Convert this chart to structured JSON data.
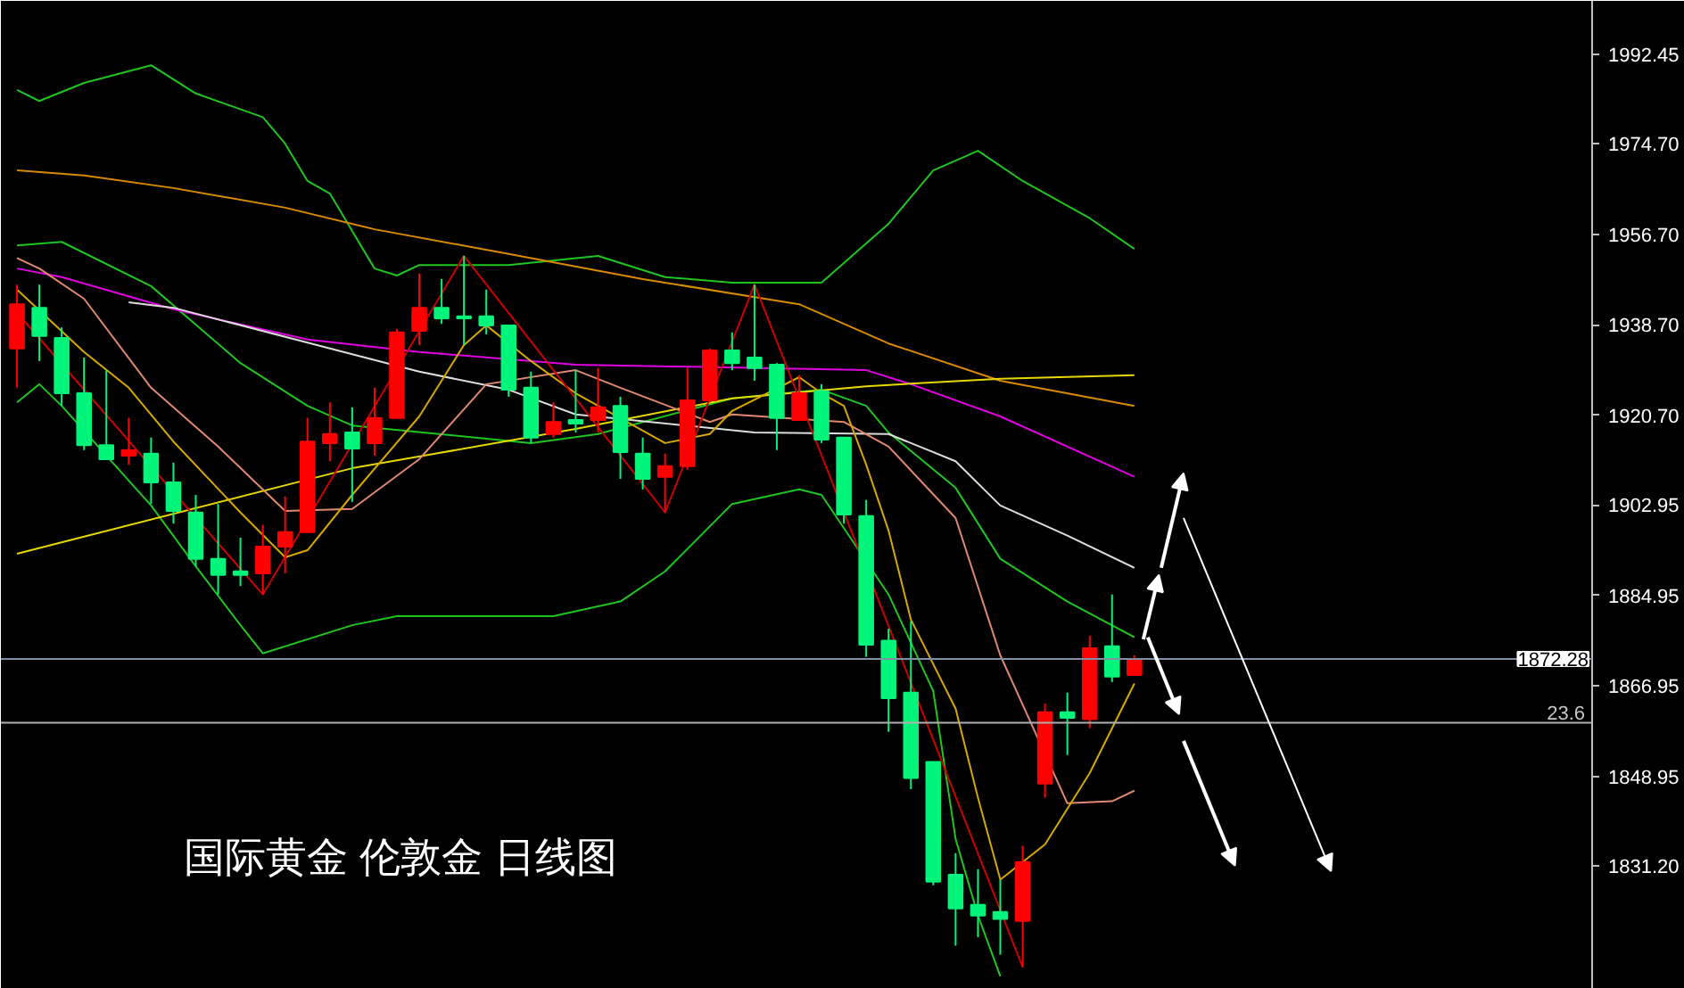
{
  "chart_data": {
    "type": "candlestick",
    "title": "国际黄金 伦敦金 日线图",
    "categories": [
      null,
      null,
      null,
      null,
      null,
      null,
      null,
      null,
      null,
      null,
      null,
      null,
      null,
      null,
      null,
      null,
      null,
      null,
      null,
      null,
      null,
      null,
      null,
      null,
      null,
      null,
      null,
      null,
      null,
      null,
      null,
      null,
      null,
      null,
      null,
      null,
      null,
      null,
      null,
      null,
      null,
      null,
      null,
      null,
      null,
      null,
      null,
      null,
      null,
      null,
      null
    ],
    "ohlc": [
      [
        1934.0,
        1946.7,
        1926.2,
        1942.8
      ],
      [
        1942.1,
        1946.7,
        1931.5,
        1936.5
      ],
      [
        1936.1,
        1938.2,
        1922.6,
        1925.1
      ],
      [
        1925.1,
        1932.2,
        1913.8,
        1914.8
      ],
      [
        1914.8,
        1929.7,
        1912.0,
        1912.0
      ],
      [
        1912.7,
        1920.2,
        1910.9,
        1913.8
      ],
      [
        1913.1,
        1916.3,
        1903.1,
        1907.4
      ],
      [
        1907.4,
        1911.3,
        1899.2,
        1901.7
      ],
      [
        1901.4,
        1904.9,
        1890.7,
        1892.2
      ],
      [
        1892.2,
        1903.1,
        1885.1,
        1889.0
      ],
      [
        1889.7,
        1896.4,
        1886.8,
        1889.0
      ],
      [
        1889.3,
        1898.9,
        1885.1,
        1894.6
      ],
      [
        1894.6,
        1904.6,
        1889.3,
        1897.5
      ],
      [
        1897.5,
        1920.2,
        1897.5,
        1915.5
      ],
      [
        1915.2,
        1923.3,
        1911.6,
        1917.0
      ],
      [
        1917.3,
        1922.3,
        1903.5,
        1914.1
      ],
      [
        1915.2,
        1926.2,
        1912.7,
        1920.2
      ],
      [
        1920.2,
        1937.9,
        1920.2,
        1937.2
      ],
      [
        1937.5,
        1948.9,
        1934.7,
        1942.1
      ],
      [
        1942.1,
        1947.8,
        1938.9,
        1940.0
      ],
      [
        1940.4,
        1952.4,
        1934.7,
        1940.0
      ],
      [
        1940.4,
        1945.7,
        1936.8,
        1938.6
      ],
      [
        1938.6,
        1938.6,
        1924.4,
        1925.8
      ],
      [
        1926.2,
        1929.4,
        1915.2,
        1916.3
      ],
      [
        1917.0,
        1923.3,
        1916.3,
        1919.4
      ],
      [
        1919.8,
        1929.7,
        1917.3,
        1919.1
      ],
      [
        1919.8,
        1930.1,
        1917.3,
        1922.3
      ],
      [
        1922.6,
        1924.4,
        1908.1,
        1913.4
      ],
      [
        1913.1,
        1916.3,
        1906.0,
        1908.1
      ],
      [
        1908.5,
        1913.1,
        1901.4,
        1910.6
      ],
      [
        1910.6,
        1930.1,
        1909.9,
        1923.7
      ],
      [
        1923.7,
        1934.0,
        1923.7,
        1933.6
      ],
      [
        1933.6,
        1937.2,
        1929.7,
        1931.1
      ],
      [
        1932.2,
        1946.7,
        1927.6,
        1930.1
      ],
      [
        1930.8,
        1931.1,
        1913.8,
        1920.2
      ],
      [
        1919.8,
        1928.7,
        1919.8,
        1925.1
      ],
      [
        1925.5,
        1926.9,
        1915.2,
        1915.9
      ],
      [
        1916.3,
        1916.3,
        1899.2,
        1901.0
      ],
      [
        1900.7,
        1903.9,
        1872.7,
        1875.1
      ],
      [
        1875.9,
        1878.3,
        1857.8,
        1864.5
      ],
      [
        1865.6,
        1879.8,
        1846.4,
        1848.6
      ],
      [
        1851.8,
        1851.8,
        1827.3,
        1828.0
      ],
      [
        1829.4,
        1833.7,
        1815.3,
        1822.7
      ],
      [
        1823.4,
        1830.5,
        1817.0,
        1821.3
      ],
      [
        1822.0,
        1828.4,
        1813.5,
        1820.6
      ],
      [
        1820.2,
        1835.1,
        1811.0,
        1831.9
      ],
      [
        1847.5,
        1863.4,
        1844.7,
        1861.7
      ],
      [
        1861.7,
        1865.6,
        1853.2,
        1860.6
      ],
      [
        1860.3,
        1876.9,
        1858.5,
        1874.4
      ],
      [
        1874.8,
        1885.1,
        1867.7,
        1868.8
      ],
      [
        1869.1,
        1873.0,
        1869.1,
        1872.28
      ]
    ],
    "colors": [
      "#ff0000",
      "#00f57a",
      "#00f57a",
      "#00f57a",
      "#00f57a",
      "#ff0000",
      "#00f57a",
      "#00f57a",
      "#00f57a",
      "#00f57a",
      "#00f57a",
      "#ff0000",
      "#ff0000",
      "#ff0000",
      "#ff0000",
      "#00f57a",
      "#ff0000",
      "#ff0000",
      "#ff0000",
      "#00f57a",
      "#00f57a",
      "#00f57a",
      "#00f57a",
      "#00f57a",
      "#ff0000",
      "#00f57a",
      "#ff0000",
      "#00f57a",
      "#00f57a",
      "#ff0000",
      "#ff0000",
      "#ff0000",
      "#00f57a",
      "#00f57a",
      "#00f57a",
      "#ff0000",
      "#00f57a",
      "#00f57a",
      "#00f57a",
      "#00f57a",
      "#00f57a",
      "#00f57a",
      "#00f57a",
      "#00f57a",
      "#00f57a",
      "#ff0000",
      "#ff0000",
      "#00f57a",
      "#ff0000",
      "#00f57a",
      "#ff0000"
    ],
    "series": [
      {
        "type": "line",
        "color": "#1fc41f",
        "values": [
          1985.4,
          1983.2,
          null,
          1986.8,
          null,
          null,
          1990.3,
          null,
          1984.7,
          null,
          null,
          1980.0,
          1974.7,
          1967.3,
          1964.8,
          null,
          1949.9,
          1948.5,
          1950.6,
          null,
          null,
          null,
          1950.6,
          null,
          null,
          null,
          1952.4,
          null,
          null,
          1948.2,
          null,
          null,
          1947.1,
          null,
          null,
          null,
          1947.1,
          null,
          null,
          1958.8,
          null,
          1969.4,
          null,
          1973.3,
          null,
          1967.3,
          null,
          null,
          1959.9,
          null,
          1953.8
        ]
      },
      {
        "type": "line",
        "color": "#1fc41f",
        "values": [
          1954.5,
          null,
          1955.2,
          null,
          null,
          null,
          1946.4,
          null,
          null,
          null,
          1931.1,
          null,
          null,
          1922.6,
          null,
          1918.7,
          null,
          null,
          null,
          null,
          null,
          null,
          null,
          1915.2,
          null,
          null,
          1917.0,
          null,
          null,
          null,
          null,
          null,
          1924.1,
          null,
          null,
          null,
          1925.8,
          null,
          1922.6,
          1917.3,
          null,
          null,
          1906.3,
          null,
          1892.2,
          null,
          null,
          1883.7,
          null,
          null,
          1876.6
        ]
      },
      {
        "type": "line",
        "color": "#1fc41f",
        "values": [
          1923.3,
          1926.9,
          1922.6,
          null,
          null,
          null,
          1902.8,
          null,
          1890.7,
          null,
          1879.0,
          1873.4,
          null,
          null,
          null,
          1879.0,
          null,
          1880.8,
          null,
          null,
          null,
          null,
          null,
          null,
          1880.8,
          null,
          null,
          1883.7,
          null,
          1889.7,
          null,
          null,
          1903.1,
          null,
          null,
          1906.0,
          1904.9,
          null,
          null,
          1885.1,
          null,
          1865.9,
          1836.5,
          1821.3,
          1809.2,
          null,
          null,
          null,
          null,
          null,
          null
        ]
      },
      {
        "type": "line",
        "color": "#d98a00",
        "values": [
          1969.4,
          null,
          null,
          1968.4,
          null,
          null,
          null,
          1965.9,
          null,
          null,
          null,
          null,
          1962.0,
          null,
          null,
          null,
          1957.7,
          null,
          null,
          null,
          null,
          null,
          1952.8,
          null,
          null,
          null,
          null,
          null,
          1947.8,
          null,
          null,
          null,
          null,
          null,
          null,
          1942.8,
          null,
          null,
          null,
          1935.0,
          null,
          null,
          null,
          null,
          1927.6,
          null,
          null,
          null,
          null,
          null,
          1922.6
        ]
      },
      {
        "type": "line",
        "color": "#e000e0",
        "values": [
          1949.9,
          null,
          1948.2,
          null,
          null,
          null,
          null,
          1941.8,
          null,
          null,
          null,
          null,
          null,
          1935.8,
          null,
          null,
          null,
          null,
          1933.3,
          null,
          null,
          null,
          null,
          null,
          null,
          1930.8,
          null,
          null,
          null,
          null,
          null,
          null,
          null,
          null,
          null,
          null,
          null,
          null,
          1929.7,
          null,
          1926.9,
          null,
          null,
          null,
          1920.5,
          null,
          null,
          null,
          null,
          null,
          1908.5
        ]
      },
      {
        "type": "line",
        "color": "#dddddd",
        "values": [
          null,
          null,
          null,
          null,
          null,
          1943.2,
          null,
          1942.1,
          null,
          null,
          null,
          null,
          null,
          null,
          1934.0,
          null,
          null,
          null,
          1929.4,
          null,
          null,
          null,
          1925.8,
          null,
          null,
          1920.9,
          null,
          null,
          null,
          null,
          null,
          null,
          null,
          1917.3,
          null,
          null,
          null,
          null,
          null,
          1917.0,
          null,
          null,
          1911.6,
          null,
          1902.8,
          null,
          null,
          1896.8,
          null,
          null,
          1890.4
        ]
      },
      {
        "type": "line",
        "color": "#e6d800",
        "values": [
          1893.2,
          null,
          null,
          null,
          null,
          null,
          null,
          null,
          null,
          null,
          null,
          null,
          null,
          null,
          null,
          1910.2,
          null,
          null,
          null,
          null,
          null,
          null,
          null,
          null,
          null,
          1918.0,
          null,
          null,
          null,
          null,
          null,
          null,
          1924.1,
          null,
          null,
          null,
          null,
          null,
          1926.5,
          null,
          null,
          null,
          null,
          null,
          1928.0,
          null,
          null,
          null,
          null,
          null,
          1928.7
        ]
      },
      {
        "type": "line",
        "color": "#e08870",
        "values": [
          1952.0,
          1949.9,
          null,
          1943.9,
          null,
          null,
          1926.2,
          null,
          null,
          1914.5,
          null,
          null,
          1901.7,
          null,
          null,
          1902.1,
          null,
          null,
          1912.0,
          null,
          null,
          1926.9,
          null,
          null,
          null,
          1929.7,
          null,
          1926.2,
          null,
          null,
          null,
          1919.4,
          1920.9,
          null,
          null,
          null,
          null,
          1919.4,
          null,
          1914.5,
          null,
          null,
          1900.3,
          null,
          1873.0,
          null,
          null,
          1843.6,
          null,
          1844.0,
          1846.1
        ]
      },
      {
        "type": "line",
        "color": "#d8a800",
        "values": [
          1945.7,
          null,
          null,
          1933.3,
          null,
          1926.2,
          null,
          1915.5,
          null,
          null,
          1901.4,
          null,
          1892.5,
          1893.9,
          null,
          1904.9,
          null,
          null,
          1920.5,
          null,
          1934.7,
          1938.6,
          null,
          1931.5,
          null,
          1925.1,
          null,
          null,
          null,
          1915.2,
          null,
          1917.0,
          1921.6,
          null,
          null,
          1928.3,
          1925.1,
          1922.6,
          1910.9,
          1897.8,
          1880.1,
          null,
          1862.4,
          1844.7,
          1828.4,
          null,
          1835.4,
          null,
          1849.6,
          null,
          1867.4
        ]
      },
      {
        "type": "line",
        "color": "#cc0000",
        "values": [
          1941.1,
          null,
          null,
          null,
          null,
          null,
          null,
          null,
          null,
          null,
          null,
          1885.1,
          null,
          null,
          null,
          null,
          null,
          null,
          null,
          null,
          1952.4,
          null,
          null,
          null,
          null,
          null,
          null,
          null,
          null,
          1901.4,
          null,
          null,
          null,
          1946.7,
          null,
          null,
          null,
          null,
          null,
          null,
          null,
          null,
          null,
          null,
          null,
          1811.0,
          null,
          null,
          null,
          null,
          null
        ]
      }
    ],
    "ylim": [
      1806.7,
      2003.1
    ],
    "yticks": [
      1992.45,
      {
        "value": 1974.7,
        "label": "1974.70"
      },
      {
        "value": 1956.7,
        "label": "1956.70"
      },
      {
        "value": 1938.7,
        "label": "1938.70"
      },
      {
        "value": 1920.7,
        "label": "1920.70"
      },
      1902.95,
      1884.95,
      1866.95,
      1848.95,
      {
        "value": 1831.2,
        "label": "1831.20"
      }
    ],
    "ref_lines": [
      {
        "axis": "y",
        "value": 1872.28,
        "label": "1872.28",
        "color": "#7f8fa6"
      },
      {
        "axis": "y",
        "value": 1859.6,
        "color": "#b0b0b0"
      }
    ],
    "annotations": [
      {
        "text": "23.6",
        "y": 1859.6
      }
    ],
    "tick_labels": "y"
  }
}
